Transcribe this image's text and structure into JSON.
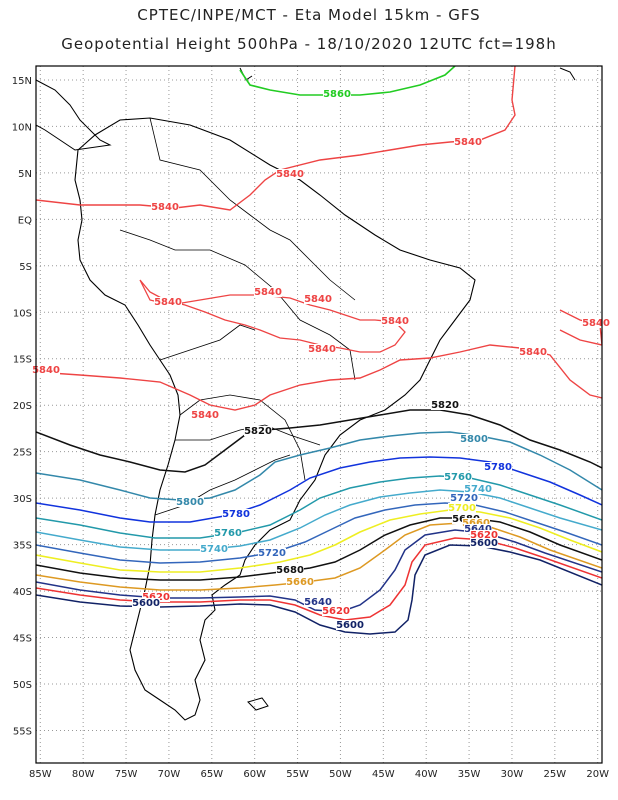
{
  "header": {
    "line1": "CPTEC/INPE/MCT -  Eta Model 15km - GFS",
    "line2": "Geopotential Height 500hPa - 18/10/2020 12UTC fct=198h"
  },
  "axes": {
    "lat_labels": [
      "15N",
      "10N",
      "5N",
      "EQ",
      "5S",
      "10S",
      "15S",
      "20S",
      "25S",
      "30S",
      "35S",
      "40S",
      "45S",
      "50S",
      "55S"
    ],
    "lat_values": [
      15,
      10,
      5,
      0,
      -5,
      -10,
      -15,
      -20,
      -25,
      -30,
      -35,
      -40,
      -45,
      -50,
      -55
    ],
    "lon_labels": [
      "85W",
      "80W",
      "75W",
      "70W",
      "65W",
      "60W",
      "55W",
      "50W",
      "45W",
      "40W",
      "35W",
      "30W",
      "25W",
      "20W"
    ],
    "lon_values": [
      -85,
      -80,
      -75,
      -70,
      -65,
      -60,
      -55,
      -50,
      -45,
      -40,
      -35,
      -30,
      -25,
      -20
    ],
    "lon_range": [
      -85.5,
      -19.5
    ],
    "lat_range": [
      -58.5,
      16.5
    ],
    "grid": "dotted"
  },
  "contours": [
    {
      "level": "5860",
      "color": "#22cc22"
    },
    {
      "level": "5840",
      "color": "#ee4444"
    },
    {
      "level": "5820",
      "color": "#111111"
    },
    {
      "level": "5800",
      "color": "#3388aa"
    },
    {
      "level": "5780",
      "color": "#1133dd"
    },
    {
      "level": "5760",
      "color": "#2299aa"
    },
    {
      "level": "5740",
      "color": "#44aacc"
    },
    {
      "level": "5720",
      "color": "#3366bb"
    },
    {
      "level": "5700",
      "color": "#eeee22"
    },
    {
      "level": "5680",
      "color": "#111111"
    },
    {
      "level": "5660",
      "color": "#dd9922"
    },
    {
      "level": "5640",
      "color": "#223388"
    },
    {
      "level": "5620",
      "color": "#ee3333"
    },
    {
      "level": "5600",
      "color": "#112266"
    }
  ]
}
